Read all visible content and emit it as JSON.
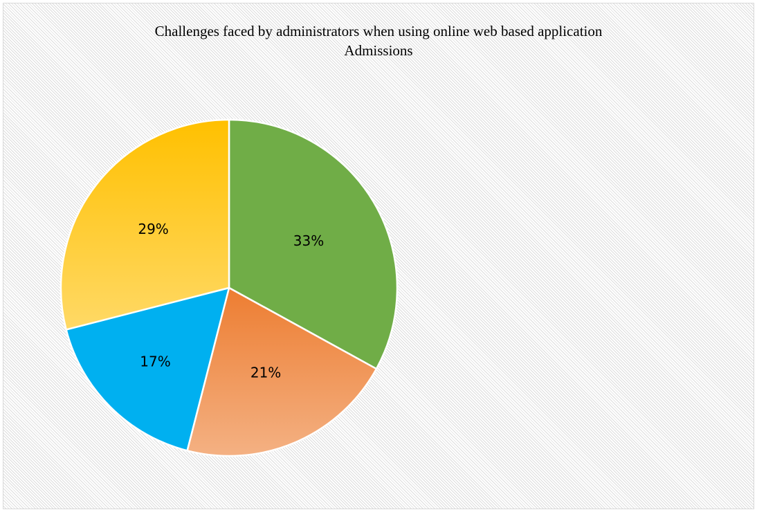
{
  "chart_data": {
    "type": "pie",
    "title": "Challenges faced by administrators when using online web based application",
    "subtitle": "Admissions",
    "start_angle_deg": 0,
    "direction": "clockwise",
    "slices": [
      {
        "value": 33,
        "label": "33%",
        "color_top": "#70ad47",
        "color_bottom": "#70ad47"
      },
      {
        "value": 21,
        "label": "21%",
        "color_top": "#ed7d31",
        "color_bottom": "#f4b183"
      },
      {
        "value": 17,
        "label": "17%",
        "color_top": "#00b0f0",
        "color_bottom": "#00b0f0"
      },
      {
        "value": 29,
        "label": "29%",
        "color_top": "#ffc000",
        "color_bottom": "#ffd966"
      }
    ],
    "legend": "none"
  }
}
